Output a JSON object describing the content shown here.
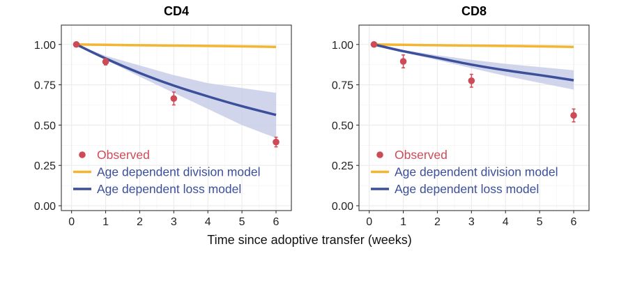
{
  "figure": {
    "xlabel": "Time since adoptive transfer (weeks)"
  },
  "legend_labels": {
    "observed": "Observed",
    "division": "Age dependent division model",
    "loss": "Age dependent loss model"
  },
  "colors": {
    "observed": "#cd4b57",
    "division": "#f2b632",
    "loss": "#3b4f9a",
    "loss_band": "#c9cee8",
    "legend_text_observed": "#cd4b57",
    "legend_text_models": "#3b4f9a"
  },
  "chart_data": [
    {
      "type": "line",
      "title": "CD4",
      "xlabel": "Time since adoptive transfer (weeks)",
      "ylabel": "",
      "xlim": [
        -0.3,
        6.45
      ],
      "ylim": [
        -0.03,
        1.12
      ],
      "x_ticks": [
        "0",
        "1",
        "2",
        "3",
        "4",
        "5",
        "6"
      ],
      "y_ticks": [
        "0.00",
        "0.25",
        "0.50",
        "0.75",
        "1.00"
      ],
      "grid": true,
      "legend_position": "bottom-left",
      "observed": {
        "x": [
          0.14,
          1,
          3,
          6
        ],
        "y": [
          1.0,
          0.893,
          0.665,
          0.395
        ],
        "err": [
          0.0,
          0.02,
          0.04,
          0.03
        ]
      },
      "division_model": {
        "x": [
          0.14,
          1,
          2,
          3,
          4,
          5,
          6
        ],
        "y": [
          1.0,
          0.998,
          0.995,
          0.993,
          0.991,
          0.988,
          0.985
        ]
      },
      "loss_model": {
        "x": [
          0.14,
          1,
          2,
          3,
          4,
          5,
          6
        ],
        "y": [
          1.0,
          0.913,
          0.823,
          0.745,
          0.678,
          0.617,
          0.563
        ],
        "lower": [
          1.0,
          0.905,
          0.8,
          0.7,
          0.6,
          0.5,
          0.42
        ],
        "upper": [
          1.0,
          0.93,
          0.87,
          0.81,
          0.76,
          0.73,
          0.7
        ]
      }
    },
    {
      "type": "line",
      "title": "CD8",
      "xlabel": "Time since adoptive transfer (weeks)",
      "ylabel": "",
      "xlim": [
        -0.3,
        6.45
      ],
      "ylim": [
        -0.03,
        1.12
      ],
      "x_ticks": [
        "0",
        "1",
        "2",
        "3",
        "4",
        "5",
        "6"
      ],
      "y_ticks": [
        "0.00",
        "0.25",
        "0.50",
        "0.75",
        "1.00"
      ],
      "grid": true,
      "legend_position": "bottom-left",
      "observed": {
        "x": [
          0.14,
          1,
          3,
          6
        ],
        "y": [
          1.0,
          0.895,
          0.775,
          0.56
        ],
        "err": [
          0.0,
          0.04,
          0.04,
          0.04
        ]
      },
      "division_model": {
        "x": [
          0.14,
          1,
          2,
          3,
          4,
          5,
          6
        ],
        "y": [
          1.0,
          0.998,
          0.995,
          0.993,
          0.991,
          0.988,
          0.985
        ]
      },
      "loss_model": {
        "x": [
          0.14,
          1,
          2,
          3,
          4,
          5,
          6
        ],
        "y": [
          1.0,
          0.958,
          0.917,
          0.875,
          0.84,
          0.81,
          0.778
        ],
        "lower": [
          1.0,
          0.951,
          0.903,
          0.853,
          0.805,
          0.762,
          0.72
        ],
        "upper": [
          1.0,
          0.966,
          0.933,
          0.905,
          0.88,
          0.86,
          0.84
        ]
      }
    }
  ]
}
